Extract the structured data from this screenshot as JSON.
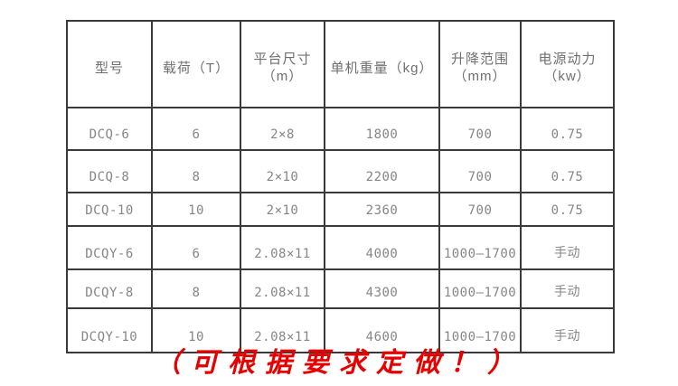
{
  "table": {
    "headers": [
      {
        "lines": [
          "型号"
        ]
      },
      {
        "lines": [
          "载荷（T）"
        ]
      },
      {
        "lines": [
          "平台尺寸",
          "（m）"
        ]
      },
      {
        "lines": [
          "单机重量（kg）"
        ]
      },
      {
        "lines": [
          "升降范围",
          "（mm）"
        ]
      },
      {
        "lines": [
          "电源动力",
          "（kw）"
        ]
      }
    ],
    "rows": [
      [
        "DCQ-6",
        "6",
        "2×8",
        "1800",
        "700",
        "0.75"
      ],
      [
        "DCQ-8",
        "8",
        "2×10",
        "2200",
        "700",
        "0.75"
      ],
      [
        "DCQ-10",
        "10",
        "2×10",
        "2360",
        "700",
        "0.75"
      ],
      [
        "DCQY-6",
        "6",
        "2.08×11",
        "4000",
        "1000—1700",
        "手动"
      ],
      [
        "DCQY-8",
        "8",
        "2.08×11",
        "4300",
        "1000—1700",
        "手动"
      ],
      [
        "DCQY-10",
        "10",
        "2.08×11",
        "4600",
        "1000—1700",
        "手动"
      ]
    ]
  },
  "caption": "（可根据要求定做！）",
  "colors": {
    "border": "#3a3a3a",
    "header_text": "#6f6f6f",
    "cell_text": "#868686",
    "caption_red": "#e60000"
  }
}
